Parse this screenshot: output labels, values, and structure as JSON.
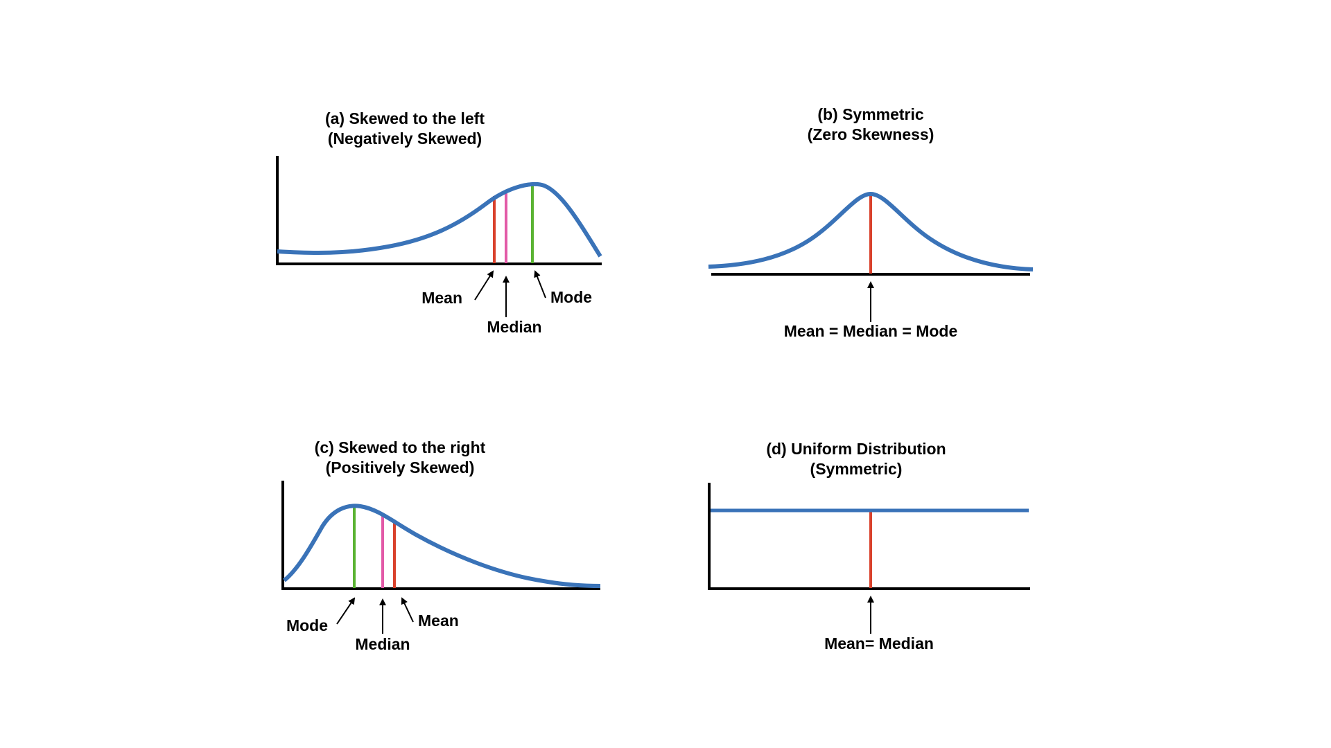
{
  "colors": {
    "curve": "#3a73b8",
    "axis": "#000000",
    "mean": "#d9412c",
    "median": "#e25aa7",
    "mode": "#5ab332"
  },
  "panels": {
    "a": {
      "title_line1": "(a) Skewed to the left",
      "title_line2": "(Negatively Skewed)",
      "label_mean": "Mean",
      "label_median": "Median",
      "label_mode": "Mode"
    },
    "b": {
      "title_line1": "(b) Symmetric",
      "title_line2": "(Zero Skewness)",
      "label_center": "Mean = Median = Mode"
    },
    "c": {
      "title_line1": "(c) Skewed to the right",
      "title_line2": "(Positively Skewed)",
      "label_mode": "Mode",
      "label_median": "Median",
      "label_mean": "Mean"
    },
    "d": {
      "title_line1": "(d) Uniform Distribution",
      "title_line2": "(Symmetric)",
      "label_center": "Mean= Median"
    }
  }
}
